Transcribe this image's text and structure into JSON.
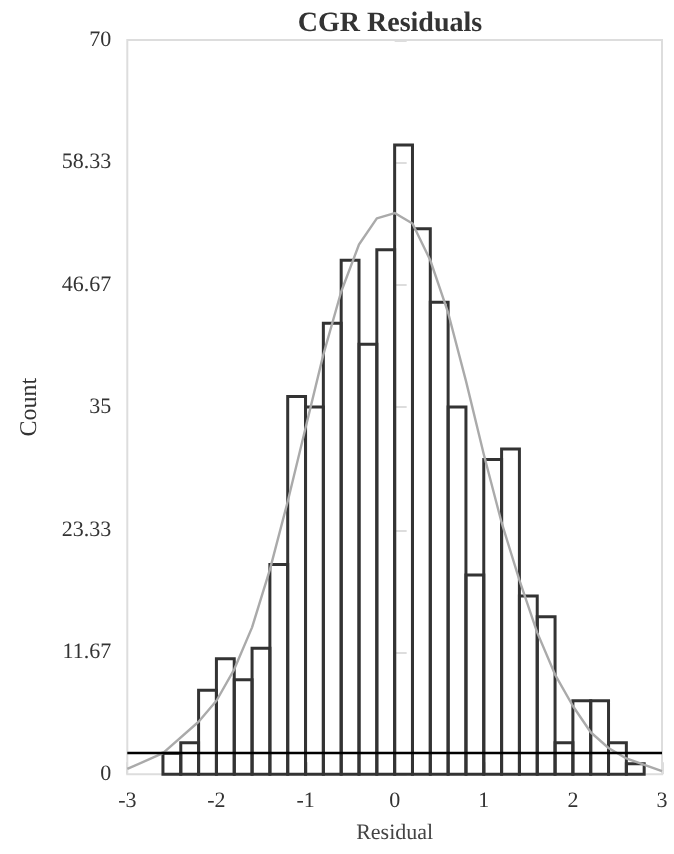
{
  "chart_data": {
    "type": "histogram",
    "title": "CGR Residuals",
    "xlabel": "Residual",
    "ylabel": "Count",
    "xlim": [
      -3,
      3
    ],
    "xticks": [
      -3,
      -2,
      -1,
      0,
      1,
      2,
      3
    ],
    "ylim": [
      0,
      70
    ],
    "yticks": [
      0,
      11.67,
      23.33,
      35,
      46.67,
      58.33,
      70
    ],
    "series": [
      {
        "color": "#333333",
        "bins": [
          -2.6,
          -2.4,
          -2.2,
          -2.0,
          -1.8,
          -1.6,
          -1.4,
          -1.2,
          -1.0,
          -0.8,
          -0.6,
          -0.4,
          -0.2,
          0,
          0.2,
          0.4,
          0.6,
          0.8,
          1.0,
          1.2,
          1.4,
          1.6,
          1.8,
          2.0,
          2.2,
          2.4,
          2.6,
          2.8
        ],
        "values": [
          2,
          3,
          8,
          11,
          9,
          12,
          20,
          36,
          35,
          43,
          49,
          41,
          50,
          60,
          52,
          45,
          35,
          19,
          30,
          31,
          17,
          15,
          3,
          7,
          7,
          3,
          1
        ]
      },
      {
        "type": "line",
        "color": "#aaaaaa",
        "x": [
          -3,
          -2.6,
          -2.2,
          -2,
          -1.8,
          -1.6,
          -1.4,
          -1.2,
          -1,
          -0.8,
          -0.6,
          -0.4,
          -0.2,
          0,
          0.2,
          0.4,
          0.6,
          0.8,
          1,
          1.2,
          1.4,
          1.6,
          1.8,
          2,
          2.2,
          2.4,
          2.6,
          3
        ],
        "values": [
          0.5,
          2,
          5,
          7,
          10,
          14,
          19.5,
          26,
          33,
          40,
          46,
          50.5,
          53,
          53.5,
          52.5,
          49,
          44,
          37.5,
          30.5,
          24,
          18.5,
          13.5,
          9.5,
          6.5,
          4,
          2.5,
          1.5,
          0.3
        ]
      }
    ],
    "ref_lines": [
      {
        "axis": "y",
        "value": 2,
        "color": "#000000"
      }
    ]
  }
}
